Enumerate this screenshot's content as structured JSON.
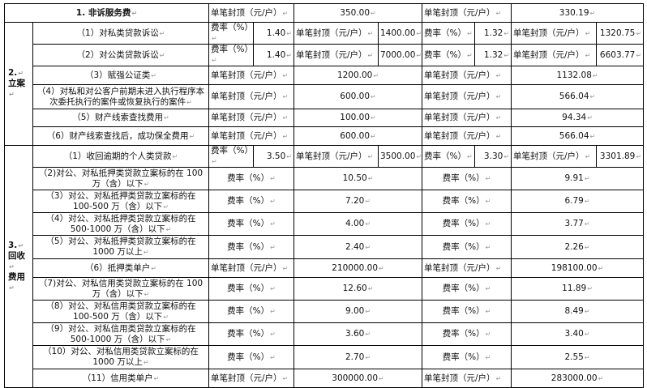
{
  "labels": {
    "rate": "费率（%）",
    "cap": "单笔封顶（元/户）"
  },
  "section1": {
    "title": "1. 非诉服务费",
    "value_a": "350.00",
    "value_b": "330.19"
  },
  "section2": {
    "category": [
      "2.",
      "立案"
    ],
    "rows": [
      {
        "type": "split",
        "item": "（1）对私类贷款诉讼",
        "rate_a": "1.40",
        "cap_a": "1400.00",
        "rate_b": "1.32",
        "cap_b": "1320.75"
      },
      {
        "type": "split",
        "item": "（2）对公类贷款诉讼",
        "rate_a": "1.40",
        "cap_a": "7000.00",
        "rate_b": "1.32",
        "cap_b": "6603.77"
      },
      {
        "type": "cap",
        "item": "（3）赋强公证类",
        "value_a": "1200.00",
        "value_b": "1132.08"
      },
      {
        "type": "cap",
        "item": "（4）对私和对公客户前期未进入执行程序本次委托执行的案件或恢复执行的案件",
        "value_a": "600.00",
        "value_b": "566.04"
      },
      {
        "type": "cap",
        "item": "（5）财产线索查找费用",
        "value_a": "100.00",
        "value_b": "94.34"
      },
      {
        "type": "cap",
        "item": "（6）财产线索查找后，成功保全费用",
        "value_a": "600.00",
        "value_b": "566.04"
      }
    ]
  },
  "section3": {
    "category": [
      "3.",
      "回收",
      "费用"
    ],
    "rows": [
      {
        "type": "split",
        "item": "（1）收回逾期的个人类贷款",
        "rate_a": "3.50",
        "cap_a": "3500.00",
        "rate_b": "3.30",
        "cap_b": "3301.89"
      },
      {
        "type": "rate",
        "item": "（2)对公、对私抵押类贷款立案标的在 100 万（含）以下",
        "value_a": "10.50",
        "value_b": "9.91"
      },
      {
        "type": "rate",
        "item": "（3）对公、对私抵押类贷款立案标的在 100-500 万（含）以下",
        "value_a": "7.20",
        "value_b": "6.79"
      },
      {
        "type": "rate",
        "item": "（4）对公、对私抵押类贷款立案标的在 500-1000 万（含）以下",
        "value_a": "4.00",
        "value_b": "3.77"
      },
      {
        "type": "rate",
        "item": "（5）对公、对私抵押类贷款立案标的在 1000 万以上",
        "value_a": "2.40",
        "value_b": "2.26"
      },
      {
        "type": "cap",
        "item": "（6）抵押类单户",
        "value_a": "210000.00",
        "value_b": "198100.00"
      },
      {
        "type": "rate",
        "item": "（7)对公、对私信用类贷款立案标的在 100 万（含）以下",
        "value_a": "12.60",
        "value_b": "11.89"
      },
      {
        "type": "rate",
        "item": "（8）对公、对私信用类贷款立案标的在 100-500 万（含）以下",
        "value_a": "9.00",
        "value_b": "8.49"
      },
      {
        "type": "rate",
        "item": "（9）对公、对私信用类贷款立案标的在 500-1000 万（含）以下",
        "value_a": "3.60",
        "value_b": "3.40"
      },
      {
        "type": "rate",
        "item": "（10）对公、对私信用类贷款立案标的在 1000 万以上",
        "value_a": "2.70",
        "value_b": "2.55"
      },
      {
        "type": "cap",
        "item": "（11）信用类单户",
        "value_a": "300000.00",
        "value_b": "283000.00"
      }
    ]
  }
}
